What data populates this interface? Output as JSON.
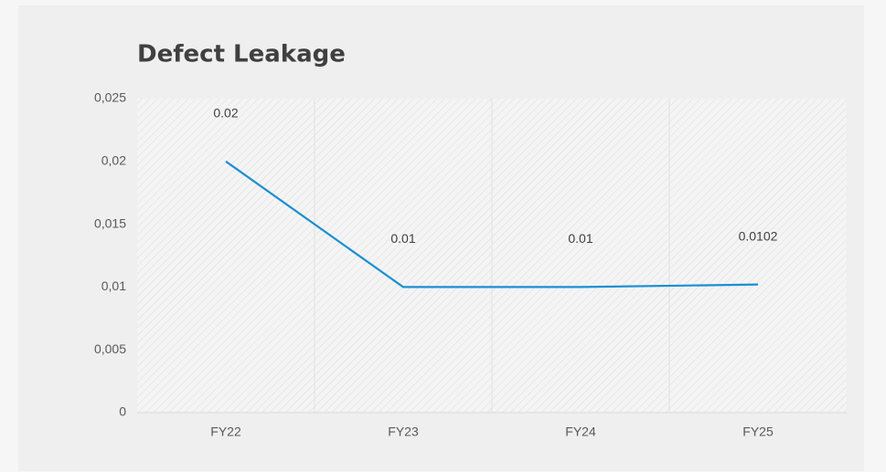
{
  "chart_data": {
    "type": "line",
    "title": "Defect Leakage",
    "categories": [
      "FY22",
      "FY23",
      "FY24",
      "FY25"
    ],
    "series": [
      {
        "name": "Defect Leakage",
        "color": "#1a8fd2",
        "values": [
          0.02,
          0.01,
          0.01,
          0.0102
        ]
      }
    ],
    "ylim": [
      0,
      0.025
    ],
    "yticks": [
      0,
      {
        "value": 0.005,
        "label": "0,005"
      },
      {
        "value": 0.01,
        "label": "0,01"
      },
      {
        "value": 0.015,
        "label": "0,015"
      },
      {
        "value": 0.02,
        "label": "0,02"
      },
      {
        "value": 0.025,
        "label": "0,025"
      }
    ],
    "grid": true
  }
}
